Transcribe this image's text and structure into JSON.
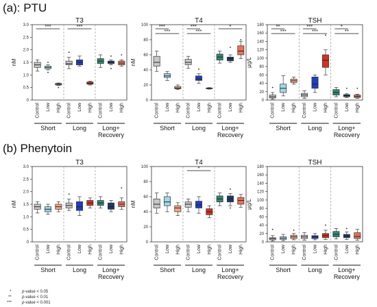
{
  "panels": [
    {
      "title": "(a): PTU"
    },
    {
      "title": "(b) Phenytoin"
    }
  ],
  "legend": [
    {
      "marker": "*",
      "label_italic": "p",
      "label": "-value < 0.05"
    },
    {
      "marker": "**",
      "label_italic": "p",
      "label": "-value < 0.01"
    },
    {
      "marker": "***",
      "label_italic": "p",
      "label": "-value < 0.001"
    }
  ],
  "colors": {
    "Control": "#c8c8c8",
    "Low_short": "#9fd8ec",
    "High_short": "#f4a582",
    "Low_long": "#1f3fbf",
    "High_long": "#d7301f",
    "Recovery_control": "#2e8b75",
    "Recovery_low": "#1a3a6b",
    "Recovery_high": "#e8705a"
  },
  "chart_data": [
    {
      "type": "box",
      "panel": "(a): PTU",
      "title": "T3",
      "ylabel": "nM",
      "ylim": [
        0,
        3.0
      ],
      "yticks": [
        "0",
        "0.5",
        "1.0",
        "1.5",
        "2.0",
        "2.5",
        "3.0"
      ],
      "categories": [
        "Control",
        "Low",
        "High",
        "Control",
        "Low",
        "High",
        "Control",
        "Low",
        "High"
      ],
      "groups": [
        "Short",
        "Long",
        "Long+\nRecovery"
      ],
      "boxes": [
        {
          "q1": 1.3,
          "med": 1.4,
          "q3": 1.5,
          "min": 1.15,
          "max": 1.6,
          "outliers": []
        },
        {
          "q1": 1.25,
          "med": 1.3,
          "q3": 1.35,
          "min": 1.2,
          "max": 1.4,
          "outliers": [
            1.5,
            1.1
          ]
        },
        {
          "q1": 0.6,
          "med": 0.63,
          "q3": 0.66,
          "min": 0.58,
          "max": 0.68,
          "outliers": [
            0.5
          ]
        },
        {
          "q1": 1.4,
          "med": 1.45,
          "q3": 1.55,
          "min": 1.25,
          "max": 1.7,
          "outliers": [
            1.9
          ]
        },
        {
          "q1": 1.4,
          "med": 1.5,
          "q3": 1.6,
          "min": 1.35,
          "max": 1.75,
          "outliers": []
        },
        {
          "q1": 0.63,
          "med": 0.67,
          "q3": 0.72,
          "min": 0.6,
          "max": 0.75,
          "outliers": []
        },
        {
          "q1": 1.45,
          "med": 1.55,
          "q3": 1.65,
          "min": 1.3,
          "max": 1.8,
          "outliers": []
        },
        {
          "q1": 1.45,
          "med": 1.5,
          "q3": 1.55,
          "min": 1.4,
          "max": 1.6,
          "outliers": [
            1.75,
            1.25
          ]
        },
        {
          "q1": 1.4,
          "med": 1.47,
          "q3": 1.55,
          "min": 1.35,
          "max": 1.6,
          "outliers": [
            1.8
          ]
        }
      ],
      "significance": [
        {
          "from": 0,
          "to": 2,
          "label": "***"
        },
        {
          "from": 3,
          "to": 5,
          "label": "***"
        }
      ]
    },
    {
      "type": "box",
      "panel": "(a): PTU",
      "title": "T4",
      "ylabel": "nM",
      "ylim": [
        0,
        100
      ],
      "yticks": [
        "0",
        "20",
        "40",
        "60",
        "80",
        "100"
      ],
      "categories": [
        "Control",
        "Low",
        "High",
        "Control",
        "Low",
        "High",
        "Control",
        "Low",
        "High"
      ],
      "groups": [
        "Short",
        "Long",
        "Long+\nRecovery"
      ],
      "boxes": [
        {
          "q1": 45,
          "med": 50,
          "q3": 58,
          "min": 38,
          "max": 65,
          "outliers": []
        },
        {
          "q1": 30,
          "med": 32,
          "q3": 35,
          "min": 26,
          "max": 38,
          "outliers": []
        },
        {
          "q1": 15,
          "med": 16,
          "q3": 18,
          "min": 14,
          "max": 20,
          "outliers": []
        },
        {
          "q1": 47,
          "med": 50,
          "q3": 54,
          "min": 42,
          "max": 58,
          "outliers": []
        },
        {
          "q1": 26,
          "med": 28,
          "q3": 32,
          "min": 22,
          "max": 35,
          "outliers": [
            41
          ]
        },
        {
          "q1": 15,
          "med": 15.5,
          "q3": 16,
          "min": 14.5,
          "max": 16.5,
          "outliers": []
        },
        {
          "q1": 53,
          "med": 57,
          "q3": 61,
          "min": 49,
          "max": 65,
          "outliers": []
        },
        {
          "q1": 52,
          "med": 55,
          "q3": 57,
          "min": 50,
          "max": 60,
          "outliers": [
            70
          ]
        },
        {
          "q1": 60,
          "med": 65,
          "q3": 72,
          "min": 55,
          "max": 78,
          "outliers": [
            80
          ]
        }
      ],
      "significance": [
        {
          "from": 0,
          "to": 1,
          "label": "***"
        },
        {
          "from": 0,
          "to": 2,
          "label": "***"
        },
        {
          "from": 3,
          "to": 4,
          "label": "***"
        },
        {
          "from": 3,
          "to": 5,
          "label": "***"
        },
        {
          "from": 6,
          "to": 8,
          "label": "*"
        }
      ]
    },
    {
      "type": "box",
      "panel": "(a): PTU",
      "title": "TSH",
      "ylabel": "μg/L",
      "ylim": [
        0,
        180
      ],
      "yticks": [
        "0",
        "20",
        "40",
        "60",
        "80",
        "100",
        "120",
        "140",
        "160",
        "180"
      ],
      "categories": [
        "Control",
        "Low",
        "High",
        "Control",
        "Low",
        "High",
        "Control",
        "Low",
        "High"
      ],
      "groups": [
        "Short",
        "Long",
        "Long+\nRecovery"
      ],
      "boxes": [
        {
          "q1": 5,
          "med": 8,
          "q3": 12,
          "min": 2,
          "max": 18,
          "outliers": [
            30
          ]
        },
        {
          "q1": 18,
          "med": 28,
          "q3": 38,
          "min": 10,
          "max": 58,
          "outliers": []
        },
        {
          "q1": 42,
          "med": 46,
          "q3": 50,
          "min": 38,
          "max": 55,
          "outliers": []
        },
        {
          "q1": 8,
          "med": 12,
          "q3": 16,
          "min": 4,
          "max": 22,
          "outliers": []
        },
        {
          "q1": 28,
          "med": 38,
          "q3": 55,
          "min": 18,
          "max": 60,
          "outliers": []
        },
        {
          "q1": 78,
          "med": 95,
          "q3": 108,
          "min": 60,
          "max": 120,
          "outliers": [
            155
          ]
        },
        {
          "q1": 12,
          "med": 18,
          "q3": 25,
          "min": 8,
          "max": 30,
          "outliers": []
        },
        {
          "q1": 8,
          "med": 10,
          "q3": 13,
          "min": 6,
          "max": 15,
          "outliers": [
            28
          ]
        },
        {
          "q1": 6,
          "med": 9,
          "q3": 12,
          "min": 4,
          "max": 14,
          "outliers": [
            28
          ]
        }
      ],
      "significance": [
        {
          "from": 0,
          "to": 1,
          "label": "**"
        },
        {
          "from": 0,
          "to": 2,
          "label": "***"
        },
        {
          "from": 3,
          "to": 4,
          "label": "***"
        },
        {
          "from": 3,
          "to": 5,
          "label": "***"
        },
        {
          "from": 6,
          "to": 7,
          "label": "*"
        },
        {
          "from": 6,
          "to": 8,
          "label": "**"
        }
      ]
    },
    {
      "type": "box",
      "panel": "(b) Phenytoin",
      "title": "T3",
      "ylabel": "nM",
      "ylim": [
        0,
        3.0
      ],
      "yticks": [
        "0",
        "0.5",
        "1.0",
        "1.5",
        "2.0",
        "2.5",
        "3.0"
      ],
      "categories": [
        "Control",
        "Low",
        "High",
        "Control",
        "Low",
        "High",
        "Control",
        "Low",
        "High"
      ],
      "groups": [
        "Short",
        "Long",
        "Long+\nRecovery"
      ],
      "boxes": [
        {
          "q1": 1.3,
          "med": 1.4,
          "q3": 1.5,
          "min": 1.15,
          "max": 1.6,
          "outliers": []
        },
        {
          "q1": 1.2,
          "med": 1.3,
          "q3": 1.4,
          "min": 1.1,
          "max": 1.5,
          "outliers": []
        },
        {
          "q1": 1.3,
          "med": 1.4,
          "q3": 1.5,
          "min": 1.2,
          "max": 1.6,
          "outliers": []
        },
        {
          "q1": 1.35,
          "med": 1.45,
          "q3": 1.55,
          "min": 1.25,
          "max": 1.7,
          "outliers": [
            1.9
          ]
        },
        {
          "q1": 1.25,
          "med": 1.4,
          "q3": 1.6,
          "min": 1.05,
          "max": 1.8,
          "outliers": []
        },
        {
          "q1": 1.45,
          "med": 1.55,
          "q3": 1.65,
          "min": 1.35,
          "max": 1.75,
          "outliers": []
        },
        {
          "q1": 1.45,
          "med": 1.55,
          "q3": 1.65,
          "min": 1.35,
          "max": 1.8,
          "outliers": []
        },
        {
          "q1": 1.3,
          "med": 1.4,
          "q3": 1.55,
          "min": 1.2,
          "max": 1.65,
          "outliers": []
        },
        {
          "q1": 1.4,
          "med": 1.5,
          "q3": 1.6,
          "min": 1.3,
          "max": 1.75,
          "outliers": [
            2.15
          ]
        }
      ],
      "significance": []
    },
    {
      "type": "box",
      "panel": "(b) Phenytoin",
      "title": "T4",
      "ylabel": "nM",
      "ylim": [
        0,
        100
      ],
      "yticks": [
        "0",
        "20",
        "40",
        "60",
        "80",
        "100"
      ],
      "categories": [
        "Control",
        "Low",
        "High",
        "Control",
        "Low",
        "High",
        "Control",
        "Low",
        "High"
      ],
      "groups": [
        "Short",
        "Long",
        "Long+\nRecovery"
      ],
      "boxes": [
        {
          "q1": 45,
          "med": 50,
          "q3": 57,
          "min": 38,
          "max": 65,
          "outliers": []
        },
        {
          "q1": 48,
          "med": 53,
          "q3": 60,
          "min": 40,
          "max": 65,
          "outliers": []
        },
        {
          "q1": 40,
          "med": 45,
          "q3": 48,
          "min": 35,
          "max": 52,
          "outliers": []
        },
        {
          "q1": 46,
          "med": 50,
          "q3": 53,
          "min": 40,
          "max": 57,
          "outliers": []
        },
        {
          "q1": 45,
          "med": 49,
          "q3": 54,
          "min": 38,
          "max": 60,
          "outliers": []
        },
        {
          "q1": 36,
          "med": 40,
          "q3": 44,
          "min": 32,
          "max": 48,
          "outliers": []
        },
        {
          "q1": 53,
          "med": 57,
          "q3": 61,
          "min": 48,
          "max": 65,
          "outliers": []
        },
        {
          "q1": 53,
          "med": 57,
          "q3": 61,
          "min": 48,
          "max": 64,
          "outliers": [
            70,
            45
          ]
        },
        {
          "q1": 50,
          "med": 55,
          "q3": 59,
          "min": 46,
          "max": 63,
          "outliers": []
        }
      ],
      "significance": [
        {
          "from": 3,
          "to": 5,
          "label": "*"
        }
      ]
    },
    {
      "type": "box",
      "panel": "(b) Phenytoin",
      "title": "TSH",
      "ylabel": "μg/L",
      "ylim": [
        0,
        180
      ],
      "yticks": [
        "0",
        "20",
        "40",
        "60",
        "80",
        "100",
        "120",
        "140",
        "160",
        "180"
      ],
      "categories": [
        "Control",
        "Low",
        "High",
        "Control",
        "Low",
        "High",
        "Control",
        "Low",
        "High"
      ],
      "groups": [
        "Short",
        "Long",
        "Long+\nRecovery"
      ],
      "boxes": [
        {
          "q1": 5,
          "med": 8,
          "q3": 10,
          "min": 2,
          "max": 15,
          "outliers": [
            30
          ]
        },
        {
          "q1": 6,
          "med": 9,
          "q3": 12,
          "min": 3,
          "max": 18,
          "outliers": []
        },
        {
          "q1": 8,
          "med": 12,
          "q3": 16,
          "min": 5,
          "max": 20,
          "outliers": [
            28
          ]
        },
        {
          "q1": 8,
          "med": 12,
          "q3": 16,
          "min": 4,
          "max": 22,
          "outliers": []
        },
        {
          "q1": 8,
          "med": 12,
          "q3": 15,
          "min": 5,
          "max": 20,
          "outliers": []
        },
        {
          "q1": 10,
          "med": 15,
          "q3": 20,
          "min": 6,
          "max": 28,
          "outliers": [
            40
          ]
        },
        {
          "q1": 12,
          "med": 18,
          "q3": 25,
          "min": 7,
          "max": 32,
          "outliers": []
        },
        {
          "q1": 10,
          "med": 14,
          "q3": 18,
          "min": 6,
          "max": 24,
          "outliers": [
            32
          ]
        },
        {
          "q1": 8,
          "med": 13,
          "q3": 22,
          "min": 4,
          "max": 30,
          "outliers": []
        }
      ],
      "significance": []
    }
  ]
}
